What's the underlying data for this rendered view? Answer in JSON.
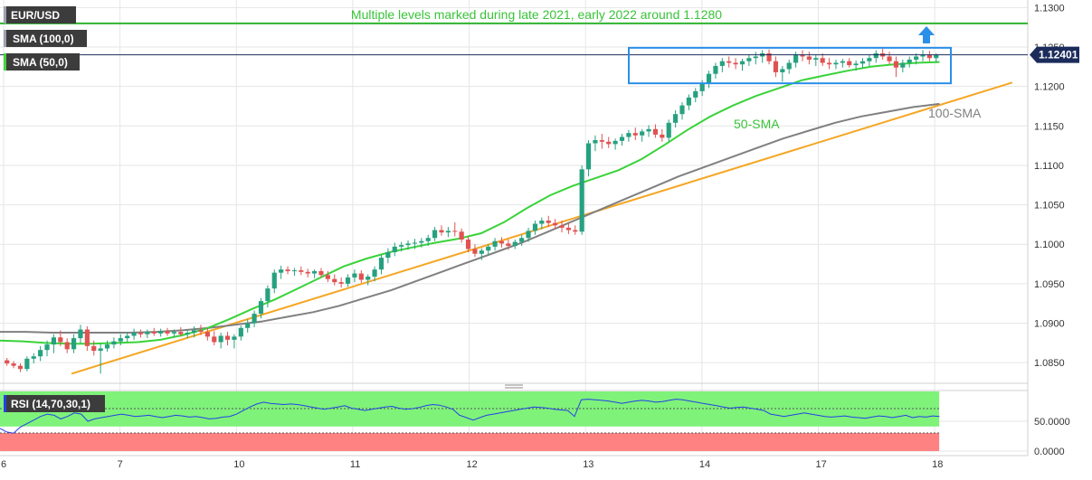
{
  "chart_data": [
    {
      "type": "candlestick",
      "symbol": "EUR/USD",
      "indicators": [
        "SMA (100,0)",
        "SMA (50,0)"
      ],
      "annotations": {
        "top_text": "Multiple levels marked during late 2021, early 2022 around 1.1280",
        "sma50_label": "50-SMA",
        "sma100_label": "100-SMA"
      },
      "resistance_level": 1.128,
      "current_price_label": "1.12401",
      "current_price": 1.12401,
      "ylim": [
        1.0825,
        1.1305
      ],
      "y_ticks": [
        "1.1300",
        "1.1250",
        "1.1200",
        "1.1150",
        "1.1100",
        "1.1050",
        "1.1000",
        "1.0950",
        "1.0900",
        "1.0850"
      ],
      "y_tick_values": [
        1.13,
        1.125,
        1.12,
        1.115,
        1.11,
        1.105,
        1.1,
        1.095,
        1.09,
        1.085
      ],
      "x_ticks": [
        "6",
        "7",
        "10",
        "11",
        "12",
        "13",
        "14",
        "17",
        "18"
      ],
      "x_tick_index": [
        0,
        24,
        48,
        72,
        96,
        120,
        144,
        168,
        192
      ],
      "range_box": {
        "x_start": 130,
        "x_end": 197,
        "low": 1.1204,
        "high": 1.1249
      },
      "trendline": {
        "x_start": 14,
        "y_start": 1.0836,
        "x_end": 208,
        "y_end": 1.1205
      },
      "candles_hourly_approx": [
        [
          0,
          1.0853,
          1.0856,
          1.0846,
          1.0849
        ],
        [
          1,
          1.0849,
          1.0852,
          1.0843,
          1.0846
        ],
        [
          2,
          1.0846,
          1.0849,
          1.0838,
          1.0842
        ],
        [
          3,
          1.0842,
          1.0858,
          1.0839,
          1.0855
        ],
        [
          4,
          1.0855,
          1.0862,
          1.0849,
          1.0858
        ],
        [
          5,
          1.0858,
          1.0871,
          1.0852,
          1.0866
        ],
        [
          6,
          1.0866,
          1.0878,
          1.0858,
          1.0873
        ],
        [
          7,
          1.0873,
          1.0886,
          1.0862,
          1.0882
        ],
        [
          8,
          1.0882,
          1.0891,
          1.0871,
          1.0876
        ],
        [
          9,
          1.0876,
          1.0881,
          1.0862,
          1.0867
        ],
        [
          10,
          1.0867,
          1.0886,
          1.0862,
          1.0881
        ],
        [
          11,
          1.0881,
          1.0898,
          1.0874,
          1.0892
        ],
        [
          12,
          1.0892,
          1.0896,
          1.0865,
          1.0871
        ],
        [
          13,
          1.0871,
          1.0878,
          1.0859,
          1.0865
        ],
        [
          14,
          1.0865,
          1.0874,
          1.0836,
          1.0868
        ],
        [
          15,
          1.0868,
          1.0878,
          1.0864,
          1.0873
        ],
        [
          16,
          1.0873,
          1.0882,
          1.0868,
          1.0877
        ],
        [
          17,
          1.0877,
          1.0886,
          1.0872,
          1.0881
        ],
        [
          18,
          1.0881,
          1.0889,
          1.0876,
          1.0884
        ],
        [
          19,
          1.0884,
          1.0893,
          1.0879,
          1.0888
        ],
        [
          20,
          1.0888,
          1.0892,
          1.0882,
          1.0886
        ],
        [
          21,
          1.0886,
          1.0892,
          1.0881,
          1.0889
        ],
        [
          22,
          1.0889,
          1.0894,
          1.0884,
          1.0887
        ],
        [
          23,
          1.0887,
          1.0893,
          1.0883,
          1.089
        ],
        [
          24,
          1.089,
          1.0894,
          1.0884,
          1.0887
        ],
        [
          25,
          1.0887,
          1.0892,
          1.0882,
          1.0889
        ],
        [
          26,
          1.0889,
          1.0895,
          1.0883,
          1.0886
        ],
        [
          27,
          1.0886,
          1.0891,
          1.0881,
          1.0888
        ],
        [
          28,
          1.0888,
          1.0896,
          1.0882,
          1.0891
        ],
        [
          29,
          1.0891,
          1.0898,
          1.0885,
          1.0889
        ],
        [
          30,
          1.0889,
          1.0894,
          1.0878,
          1.0883
        ],
        [
          31,
          1.0883,
          1.089,
          1.0872,
          1.0876
        ],
        [
          32,
          1.0876,
          1.0888,
          1.0868,
          1.0884
        ],
        [
          33,
          1.0884,
          1.0889,
          1.0872,
          1.0879
        ],
        [
          34,
          1.0879,
          1.0886,
          1.0868,
          1.0883
        ],
        [
          35,
          1.0883,
          1.0897,
          1.0878,
          1.0894
        ],
        [
          36,
          1.0894,
          1.0905,
          1.0888,
          1.09
        ],
        [
          37,
          1.09,
          1.0916,
          1.0895,
          1.0912
        ],
        [
          38,
          1.0912,
          1.0932,
          1.0906,
          1.0928
        ],
        [
          39,
          1.0928,
          1.0948,
          1.092,
          1.0944
        ],
        [
          40,
          1.0944,
          1.0968,
          1.0938,
          1.0964
        ],
        [
          41,
          1.0964,
          1.0973,
          1.0956,
          1.0968
        ],
        [
          42,
          1.0968,
          1.0972,
          1.0962,
          1.0966
        ],
        [
          43,
          1.0966,
          1.097,
          1.096,
          1.0967
        ],
        [
          44,
          1.0967,
          1.0972,
          1.0961,
          1.0965
        ],
        [
          45,
          1.0965,
          1.0969,
          1.0958,
          1.0963
        ],
        [
          46,
          1.0963,
          1.0968,
          1.0957,
          1.0966
        ],
        [
          47,
          1.0966,
          1.097,
          1.0958,
          1.0961
        ],
        [
          48,
          1.0961,
          1.0966,
          1.0952,
          1.0956
        ],
        [
          49,
          1.0956,
          1.0962,
          1.0948,
          1.0952
        ],
        [
          50,
          1.0952,
          1.0958,
          1.0945,
          1.095
        ],
        [
          51,
          1.095,
          1.0962,
          1.0946,
          1.0958
        ],
        [
          52,
          1.0958,
          1.0968,
          1.0952,
          1.0963
        ],
        [
          53,
          1.0963,
          1.0967,
          1.0951,
          1.0955
        ],
        [
          54,
          1.0955,
          1.0962,
          1.0948,
          1.0959
        ],
        [
          55,
          1.0959,
          1.0972,
          1.0953,
          1.0968
        ],
        [
          56,
          1.0968,
          1.0987,
          1.0962,
          1.0983
        ],
        [
          57,
          1.0983,
          1.0995,
          1.0976,
          1.099
        ],
        [
          58,
          1.099,
          1.1002,
          1.0985,
          1.0997
        ],
        [
          59,
          1.0997,
          1.1003,
          1.0991,
          1.0999
        ],
        [
          60,
          1.0999,
          1.1005,
          1.0993,
          1.1001
        ],
        [
          61,
          1.1001,
          1.1007,
          1.0994,
          1.1002
        ],
        [
          62,
          1.1002,
          1.1008,
          1.0996,
          1.1004
        ],
        [
          63,
          1.1004,
          1.1012,
          1.0998,
          1.1008
        ],
        [
          64,
          1.1008,
          1.1022,
          1.1004,
          1.1018
        ],
        [
          65,
          1.1018,
          1.1024,
          1.1011,
          1.1015
        ],
        [
          66,
          1.1015,
          1.1022,
          1.1009,
          1.1017
        ],
        [
          67,
          1.1017,
          1.1028,
          1.101,
          1.1016
        ],
        [
          68,
          1.1016,
          1.102,
          1.1002,
          1.1006
        ],
        [
          69,
          1.1006,
          1.101,
          1.099,
          1.0994
        ],
        [
          70,
          1.0994,
          1.1,
          1.0984,
          1.0988
        ],
        [
          71,
          1.0988,
          1.0995,
          1.098,
          1.0992
        ],
        [
          72,
          1.0992,
          1.1,
          1.0986,
          1.0997
        ],
        [
          73,
          1.0997,
          1.1008,
          1.0992,
          1.1004
        ],
        [
          74,
          1.1004,
          1.1009,
          1.0996,
          1.1001
        ],
        [
          75,
          1.1001,
          1.1006,
          1.0993,
          1.0998
        ],
        [
          76,
          1.0998,
          1.1006,
          1.0994,
          1.1003
        ],
        [
          77,
          1.1003,
          1.1012,
          1.0998,
          1.1008
        ],
        [
          78,
          1.1008,
          1.1021,
          1.1003,
          1.1017
        ],
        [
          79,
          1.1017,
          1.103,
          1.1012,
          1.1026
        ],
        [
          80,
          1.1026,
          1.1034,
          1.1019,
          1.103
        ],
        [
          81,
          1.103,
          1.1036,
          1.1022,
          1.1027
        ],
        [
          82,
          1.1027,
          1.1032,
          1.1019,
          1.1024
        ],
        [
          83,
          1.1024,
          1.103,
          1.1015,
          1.1021
        ],
        [
          84,
          1.1021,
          1.1028,
          1.1013,
          1.1018
        ],
        [
          85,
          1.1018,
          1.1024,
          1.1012,
          1.1016
        ],
        [
          86,
          1.1016,
          1.11,
          1.1012,
          1.1095
        ],
        [
          87,
          1.1095,
          1.1132,
          1.1086,
          1.1128
        ],
        [
          88,
          1.1128,
          1.1138,
          1.1118,
          1.1132
        ],
        [
          89,
          1.1132,
          1.114,
          1.1121,
          1.113
        ],
        [
          90,
          1.113,
          1.1136,
          1.1122,
          1.1127
        ],
        [
          91,
          1.1127,
          1.1134,
          1.112,
          1.1131
        ],
        [
          92,
          1.1131,
          1.114,
          1.1125,
          1.1136
        ],
        [
          93,
          1.1136,
          1.1145,
          1.113,
          1.1141
        ],
        [
          94,
          1.1141,
          1.1148,
          1.1132,
          1.1138
        ],
        [
          95,
          1.1138,
          1.1146,
          1.113,
          1.1143
        ],
        [
          96,
          1.1143,
          1.1151,
          1.1136,
          1.1146
        ],
        [
          97,
          1.1146,
          1.1152,
          1.1135,
          1.1139
        ],
        [
          98,
          1.1139,
          1.1146,
          1.113,
          1.1135
        ],
        [
          99,
          1.1135,
          1.1158,
          1.113,
          1.1154
        ],
        [
          100,
          1.1154,
          1.117,
          1.1148,
          1.1165
        ],
        [
          101,
          1.1165,
          1.118,
          1.1158,
          1.1176
        ],
        [
          102,
          1.1176,
          1.119,
          1.117,
          1.1186
        ],
        [
          103,
          1.1186,
          1.1198,
          1.118,
          1.1194
        ],
        [
          104,
          1.1194,
          1.1208,
          1.1188,
          1.1204
        ],
        [
          105,
          1.1204,
          1.122,
          1.1198,
          1.1216
        ],
        [
          106,
          1.1216,
          1.123,
          1.121,
          1.1226
        ],
        [
          107,
          1.1226,
          1.1236,
          1.1218,
          1.1232
        ],
        [
          108,
          1.1232,
          1.1238,
          1.1224,
          1.123
        ],
        [
          109,
          1.123,
          1.1236,
          1.1222,
          1.1228
        ],
        [
          110,
          1.1228,
          1.1235,
          1.122,
          1.1232
        ],
        [
          111,
          1.1232,
          1.124,
          1.1226,
          1.1236
        ],
        [
          112,
          1.1236,
          1.1244,
          1.1228,
          1.1238
        ],
        [
          113,
          1.1238,
          1.1246,
          1.123,
          1.1242
        ],
        [
          114,
          1.1242,
          1.1247,
          1.1228,
          1.1232
        ],
        [
          115,
          1.1232,
          1.1238,
          1.1212,
          1.1218
        ],
        [
          116,
          1.1218,
          1.1226,
          1.1206,
          1.1222
        ],
        [
          117,
          1.1222,
          1.1234,
          1.1216,
          1.123
        ],
        [
          118,
          1.123,
          1.1244,
          1.1224,
          1.124
        ],
        [
          119,
          1.124,
          1.1246,
          1.1232,
          1.1238
        ],
        [
          120,
          1.1238,
          1.1244,
          1.1228,
          1.1234
        ],
        [
          121,
          1.1234,
          1.124,
          1.1226,
          1.1236
        ],
        [
          122,
          1.1236,
          1.1242,
          1.1226,
          1.123
        ],
        [
          123,
          1.123,
          1.1236,
          1.1222,
          1.1228
        ],
        [
          124,
          1.1228,
          1.1234,
          1.1222,
          1.123
        ],
        [
          125,
          1.123,
          1.1235,
          1.1224,
          1.1232
        ],
        [
          126,
          1.1232,
          1.1236,
          1.1224,
          1.1227
        ],
        [
          127,
          1.1227,
          1.1233,
          1.122,
          1.1229
        ],
        [
          128,
          1.1229,
          1.1236,
          1.1223,
          1.1232
        ],
        [
          129,
          1.1232,
          1.124,
          1.1226,
          1.1236
        ],
        [
          130,
          1.1236,
          1.1246,
          1.123,
          1.1242
        ],
        [
          131,
          1.1242,
          1.1248,
          1.1234,
          1.1238
        ],
        [
          132,
          1.1238,
          1.1244,
          1.1228,
          1.1232
        ],
        [
          133,
          1.1232,
          1.1238,
          1.1212,
          1.1224
        ],
        [
          134,
          1.1224,
          1.1234,
          1.1218,
          1.123
        ],
        [
          135,
          1.123,
          1.1238,
          1.1224,
          1.1234
        ],
        [
          136,
          1.1234,
          1.1242,
          1.1228,
          1.1238
        ],
        [
          137,
          1.1238,
          1.1246,
          1.1232,
          1.124
        ],
        [
          138,
          1.124,
          1.1245,
          1.1232,
          1.1236
        ],
        [
          139,
          1.1236,
          1.1242,
          1.123,
          1.124
        ]
      ],
      "sma50": [
        1.0878,
        1.0877,
        1.0875,
        1.0874,
        1.0874,
        1.0875,
        1.0876,
        1.0879,
        1.0885,
        1.0893,
        1.0905,
        1.0918,
        1.093,
        1.0944,
        1.0958,
        1.0972,
        1.0982,
        1.099,
        1.0996,
        1.1002,
        1.1007,
        1.1014,
        1.1028,
        1.1046,
        1.1062,
        1.1074,
        1.1084,
        1.1094,
        1.1108,
        1.1126,
        1.1145,
        1.1162,
        1.1176,
        1.1188,
        1.1198,
        1.1208,
        1.1214,
        1.122,
        1.1225,
        1.1228,
        1.123,
        1.1231
      ],
      "sma100": [
        1.0889,
        1.0889,
        1.0888,
        1.0888,
        1.0888,
        1.0888,
        1.0889,
        1.0891,
        1.0894,
        1.0898,
        1.0902,
        1.0908,
        1.0914,
        1.0922,
        1.0932,
        1.0942,
        1.0954,
        1.0966,
        1.0978,
        1.099,
        1.1002,
        1.1016,
        1.103,
        1.1044,
        1.1058,
        1.1072,
        1.1086,
        1.1098,
        1.111,
        1.1122,
        1.1134,
        1.1144,
        1.1154,
        1.1162,
        1.1168,
        1.1174,
        1.1178
      ]
    },
    {
      "type": "line",
      "label": "RSI (14,70,30,1)",
      "ylim": [
        0,
        100
      ],
      "bands": {
        "overbought": 70,
        "oversold": 30
      },
      "y_ticks": [
        "50.0000",
        "0.0000"
      ],
      "y_tick_values": [
        50,
        0
      ],
      "values": [
        38,
        32,
        30,
        40,
        46,
        52,
        58,
        62,
        60,
        54,
        58,
        64,
        62,
        50,
        54,
        56,
        58,
        60,
        62,
        60,
        58,
        59,
        60,
        58,
        56,
        58,
        60,
        59,
        57,
        58,
        56,
        54,
        55,
        57,
        58,
        62,
        68,
        74,
        79,
        82,
        80,
        79,
        78,
        79,
        78,
        76,
        74,
        72,
        70,
        72,
        74,
        76,
        72,
        70,
        68,
        70,
        72,
        74,
        75,
        72,
        70,
        71,
        73,
        76,
        78,
        77,
        74,
        70,
        60,
        56,
        52,
        56,
        60,
        62,
        64,
        66,
        68,
        70,
        72,
        74,
        73,
        72,
        70,
        69,
        68,
        58,
        86,
        87,
        86,
        85,
        84,
        82,
        80,
        82,
        84,
        85,
        84,
        82,
        83,
        85,
        87,
        86,
        84,
        82,
        80,
        78,
        76,
        74,
        72,
        73,
        74,
        72,
        70,
        68,
        62,
        60,
        58,
        60,
        62,
        64,
        62,
        60,
        58,
        57,
        58,
        59,
        57,
        56,
        55,
        57,
        59,
        58,
        56,
        58,
        60,
        56,
        58,
        57,
        59,
        58
      ]
    }
  ]
}
